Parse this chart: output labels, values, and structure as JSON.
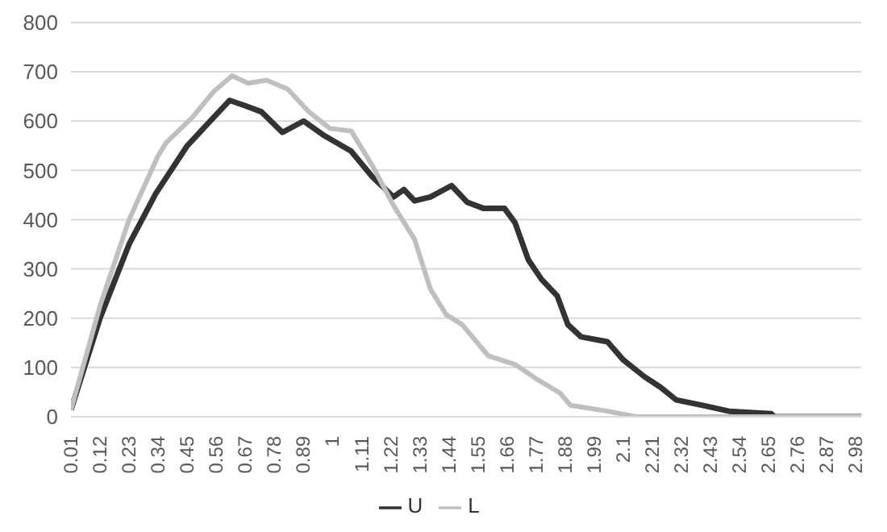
{
  "chart_data": {
    "type": "line",
    "xlim": [
      0.01,
      3
    ],
    "xticks": [
      0.01,
      0.12,
      0.23,
      0.34,
      0.45,
      0.56,
      0.67,
      0.78,
      0.89,
      1,
      1.11,
      1.22,
      1.33,
      1.44,
      1.55,
      1.66,
      1.77,
      1.88,
      1.99,
      2.1,
      2.21,
      2.32,
      2.43,
      2.54,
      2.65,
      2.76,
      2.87,
      2.98
    ],
    "ylim": [
      0,
      800
    ],
    "yticks": [
      0,
      100,
      200,
      300,
      400,
      500,
      600,
      700,
      800
    ],
    "grid": "y",
    "legend": "bottom",
    "marker": "none",
    "line_style": "solid",
    "series": [
      {
        "name": "U",
        "color": "#333333",
        "x": [
          0.01,
          0.12,
          0.23,
          0.33,
          0.45,
          0.53,
          0.61,
          0.67,
          0.73,
          0.81,
          0.89,
          0.97,
          1.07,
          1.15,
          1.23,
          1.27,
          1.31,
          1.37,
          1.45,
          1.51,
          1.57,
          1.65,
          1.69,
          1.74,
          1.79,
          1.85,
          1.89,
          1.94,
          2.04,
          2.1,
          2.18,
          2.24,
          2.3,
          2.4,
          2.5,
          2.66,
          2.67,
          3
        ],
        "values": [
          14,
          200,
          350,
          452,
          550,
          596,
          642,
          631,
          619,
          577,
          600,
          570,
          539,
          487,
          446,
          461,
          438,
          446,
          469,
          435,
          423,
          423,
          394,
          319,
          279,
          245,
          187,
          162,
          152,
          115,
          81,
          60,
          34,
          23,
          11,
          6,
          0,
          0
        ]
      },
      {
        "name": "L",
        "color": "#bfbfbf",
        "x": [
          0.01,
          0.12,
          0.23,
          0.34,
          0.37,
          0.47,
          0.55,
          0.62,
          0.68,
          0.75,
          0.83,
          0.91,
          0.99,
          1.07,
          1.15,
          1.23,
          1.31,
          1.37,
          1.43,
          1.49,
          1.59,
          1.69,
          1.77,
          1.86,
          1.9,
          2.04,
          2.15,
          3
        ],
        "values": [
          14,
          225,
          400,
          530,
          556,
          608,
          660,
          692,
          677,
          683,
          665,
          619,
          585,
          580,
          510,
          429,
          360,
          259,
          207,
          187,
          123,
          106,
          77,
          48,
          23,
          11,
          0,
          0
        ]
      }
    ]
  }
}
